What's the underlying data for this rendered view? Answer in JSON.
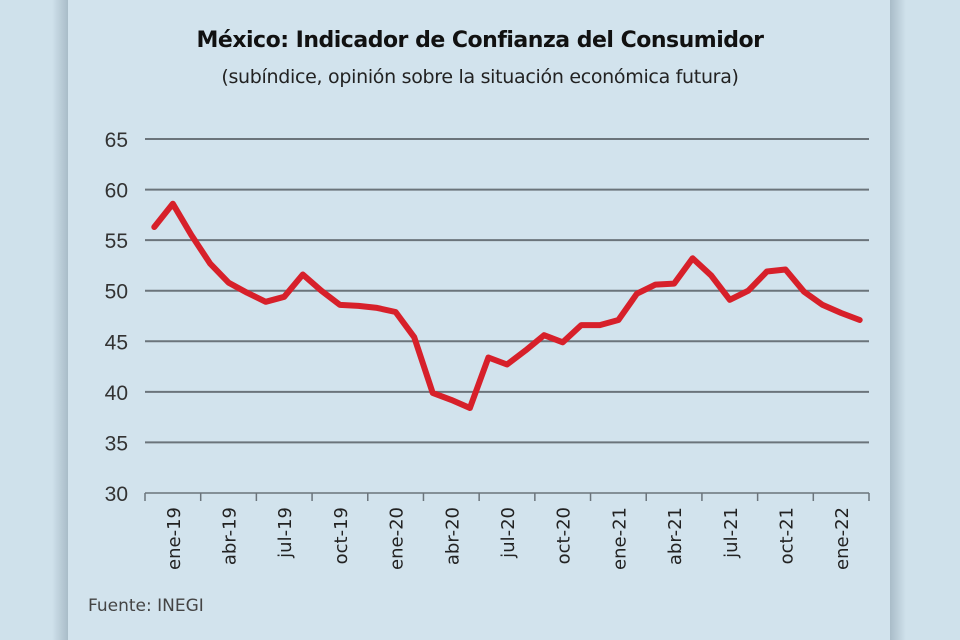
{
  "chart_data": {
    "type": "line",
    "title": "México: Indicador de Confianza del Consumidor",
    "subtitle": "(subíndice, opinión sobre la situación económica futura)",
    "source": "Fuente: INEGI",
    "ylim": [
      30,
      65
    ],
    "yticks": [
      30,
      35,
      40,
      45,
      50,
      55,
      60,
      65
    ],
    "xtick_labels": [
      "ene-19",
      "abr-19",
      "jul-19",
      "oct-19",
      "ene-20",
      "abr-20",
      "jul-20",
      "oct-20",
      "ene-21",
      "abr-21",
      "jul-21",
      "oct-21",
      "ene-22"
    ],
    "x_start": "ene-19",
    "x_end": "mar-22",
    "grid": true,
    "line_color": "#d7202a",
    "values": [
      56.3,
      58.6,
      55.5,
      52.7,
      50.8,
      49.8,
      48.9,
      49.4,
      51.6,
      50.0,
      48.6,
      48.5,
      48.3,
      47.9,
      45.4,
      39.9,
      39.2,
      38.4,
      43.4,
      42.7,
      44.1,
      45.6,
      44.9,
      46.6,
      46.6,
      47.1,
      49.7,
      50.6,
      50.7,
      53.2,
      51.5,
      49.1,
      50.0,
      51.9,
      52.1,
      49.9,
      48.6,
      47.8,
      47.1
    ]
  }
}
